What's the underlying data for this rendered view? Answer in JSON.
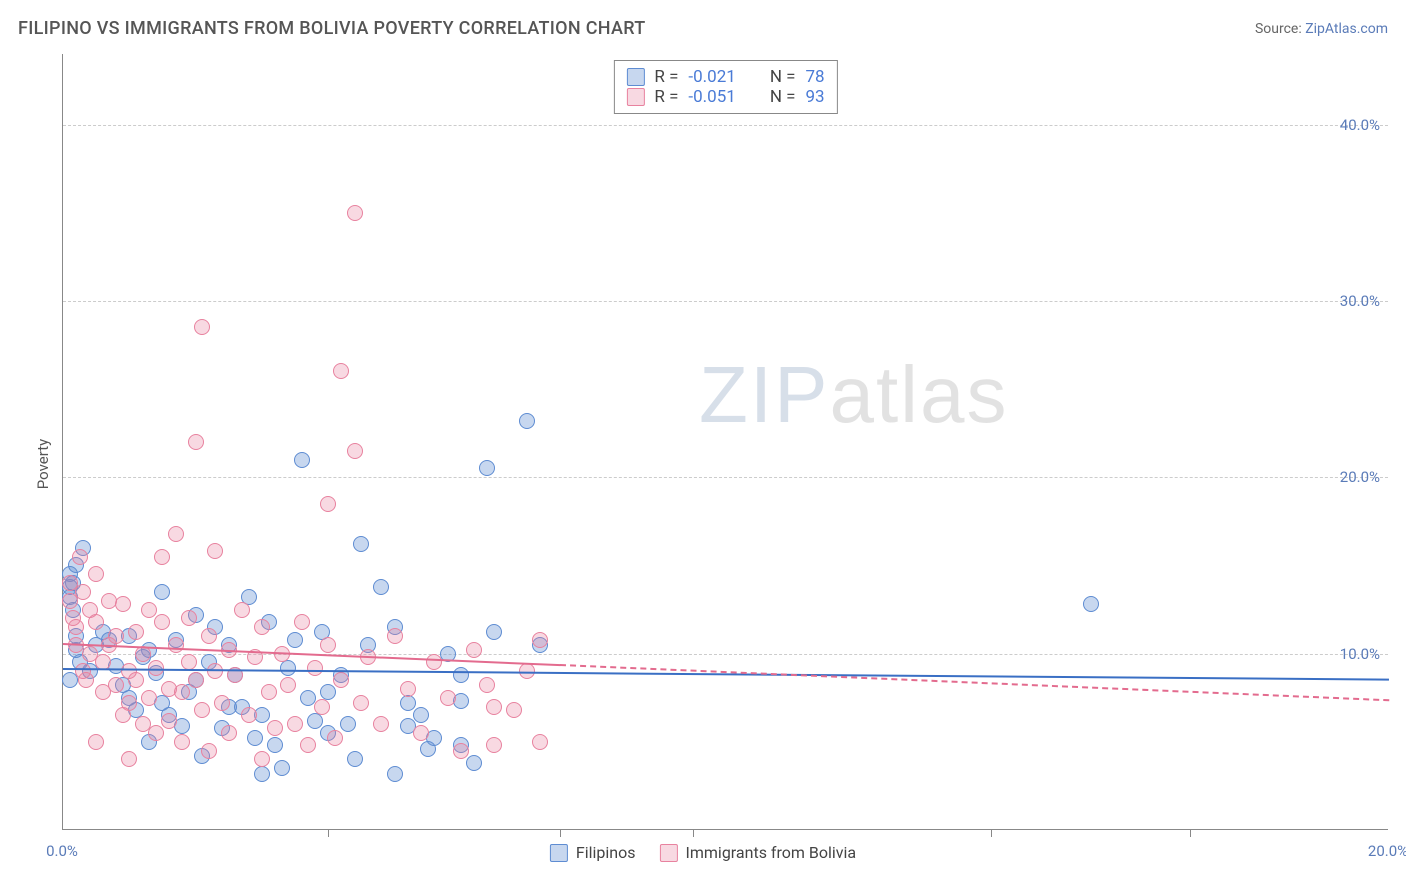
{
  "title": "FILIPINO VS IMMIGRANTS FROM BOLIVIA POVERTY CORRELATION CHART",
  "source_label": "Source:",
  "source_link_text": "ZipAtlas.com",
  "yaxis_label": "Poverty",
  "chart": {
    "type": "scatter",
    "xlim": [
      0,
      20
    ],
    "ylim": [
      0,
      44
    ],
    "xticks": [
      {
        "v": 0,
        "label": "0.0%"
      },
      {
        "v": 20,
        "label": "20.0%"
      }
    ],
    "xtick_marks": [
      4,
      7.5,
      9.5,
      14,
      17
    ],
    "yticks": [
      {
        "v": 10,
        "label": "10.0%"
      },
      {
        "v": 20,
        "label": "20.0%"
      },
      {
        "v": 30,
        "label": "30.0%"
      },
      {
        "v": 40,
        "label": "40.0%"
      }
    ],
    "grid_color": "#cccccc",
    "background_color": "#ffffff",
    "watermark_text_1": "ZIP",
    "watermark_text_2": "atlas",
    "series": [
      {
        "name": "Filipinos",
        "color_fill": "rgba(94,140,210,0.35)",
        "color_stroke": "#5e8cd2",
        "marker_radius": 8,
        "R": "-0.021",
        "N": "78",
        "trend": {
          "x0": 0,
          "y0": 9.2,
          "x1": 20,
          "y1": 8.6,
          "color": "#3a6fc4",
          "solid_until_x": 20
        },
        "points": [
          [
            0.1,
            14.5
          ],
          [
            0.1,
            13.8
          ],
          [
            0.1,
            13.2
          ],
          [
            0.15,
            12.5
          ],
          [
            0.15,
            14
          ],
          [
            0.2,
            11
          ],
          [
            0.2,
            10.2
          ],
          [
            0.25,
            9.5
          ],
          [
            0.2,
            15
          ],
          [
            0.3,
            16
          ],
          [
            0.1,
            8.5
          ],
          [
            0.4,
            9
          ],
          [
            0.5,
            10.5
          ],
          [
            0.6,
            11.2
          ],
          [
            0.7,
            10.8
          ],
          [
            0.8,
            9.3
          ],
          [
            0.9,
            8.2
          ],
          [
            1.0,
            7.5
          ],
          [
            1.0,
            11
          ],
          [
            1.1,
            6.8
          ],
          [
            1.2,
            9.8
          ],
          [
            1.3,
            10.2
          ],
          [
            1.4,
            8.9
          ],
          [
            1.5,
            13.5
          ],
          [
            1.5,
            7.2
          ],
          [
            1.6,
            6.5
          ],
          [
            1.7,
            10.8
          ],
          [
            1.8,
            5.9
          ],
          [
            1.9,
            7.8
          ],
          [
            2.0,
            8.5
          ],
          [
            2.0,
            12.2
          ],
          [
            2.1,
            4.2
          ],
          [
            2.2,
            9.5
          ],
          [
            2.3,
            11.5
          ],
          [
            2.4,
            5.8
          ],
          [
            2.5,
            10.5
          ],
          [
            2.6,
            8.8
          ],
          [
            2.7,
            7.0
          ],
          [
            2.8,
            13.2
          ],
          [
            2.9,
            5.2
          ],
          [
            3.0,
            6.5
          ],
          [
            3.1,
            11.8
          ],
          [
            3.2,
            4.8
          ],
          [
            3.3,
            3.5
          ],
          [
            3.4,
            9.2
          ],
          [
            3.5,
            10.8
          ],
          [
            3.6,
            21.0
          ],
          [
            3.7,
            7.5
          ],
          [
            3.8,
            6.2
          ],
          [
            3.9,
            11.2
          ],
          [
            4.0,
            5.5
          ],
          [
            4.2,
            8.8
          ],
          [
            4.4,
            4.0
          ],
          [
            4.5,
            16.2
          ],
          [
            4.6,
            10.5
          ],
          [
            4.8,
            13.8
          ],
          [
            5.0,
            3.2
          ],
          [
            5.0,
            11.5
          ],
          [
            5.2,
            5.9
          ],
          [
            5.2,
            7.2
          ],
          [
            5.4,
            6.5
          ],
          [
            5.6,
            5.2
          ],
          [
            5.8,
            10.0
          ],
          [
            6.0,
            7.3
          ],
          [
            6.0,
            4.8
          ],
          [
            6.2,
            3.8
          ],
          [
            6.4,
            20.5
          ],
          [
            6.5,
            11.2
          ],
          [
            7.0,
            23.2
          ],
          [
            7.2,
            10.5
          ],
          [
            6.0,
            8.8
          ],
          [
            5.5,
            4.6
          ],
          [
            4.0,
            7.8
          ],
          [
            4.3,
            6.0
          ],
          [
            3.0,
            3.2
          ],
          [
            15.5,
            12.8
          ],
          [
            2.5,
            7.0
          ],
          [
            1.3,
            5.0
          ]
        ]
      },
      {
        "name": "Immigrants from Bolivia",
        "color_fill": "rgba(232,130,160,0.30)",
        "color_stroke": "#e8829f",
        "marker_radius": 8,
        "R": "-0.051",
        "N": "93",
        "trend": {
          "x0": 0,
          "y0": 10.6,
          "x1": 20,
          "y1": 7.4,
          "color": "#e36b8e",
          "solid_until_x": 7.5
        },
        "points": [
          [
            0.1,
            14.0
          ],
          [
            0.1,
            13.0
          ],
          [
            0.15,
            12.0
          ],
          [
            0.2,
            11.5
          ],
          [
            0.2,
            10.5
          ],
          [
            0.25,
            15.5
          ],
          [
            0.3,
            9.0
          ],
          [
            0.3,
            13.5
          ],
          [
            0.35,
            8.5
          ],
          [
            0.4,
            12.5
          ],
          [
            0.4,
            10.0
          ],
          [
            0.5,
            11.8
          ],
          [
            0.5,
            14.5
          ],
          [
            0.6,
            9.5
          ],
          [
            0.6,
            7.8
          ],
          [
            0.7,
            13.0
          ],
          [
            0.7,
            10.5
          ],
          [
            0.8,
            8.2
          ],
          [
            0.8,
            11.0
          ],
          [
            0.9,
            6.5
          ],
          [
            0.9,
            12.8
          ],
          [
            1.0,
            9.0
          ],
          [
            1.0,
            7.2
          ],
          [
            1.1,
            11.2
          ],
          [
            1.1,
            8.5
          ],
          [
            1.2,
            6.0
          ],
          [
            1.2,
            10.0
          ],
          [
            1.3,
            12.5
          ],
          [
            1.3,
            7.5
          ],
          [
            1.4,
            9.2
          ],
          [
            1.4,
            5.5
          ],
          [
            1.5,
            15.5
          ],
          [
            1.5,
            11.8
          ],
          [
            1.6,
            8.0
          ],
          [
            1.6,
            6.2
          ],
          [
            1.7,
            10.5
          ],
          [
            1.7,
            16.8
          ],
          [
            1.8,
            7.8
          ],
          [
            1.8,
            5.0
          ],
          [
            1.9,
            9.5
          ],
          [
            1.9,
            12.0
          ],
          [
            2.0,
            22.0
          ],
          [
            2.0,
            8.5
          ],
          [
            2.1,
            28.5
          ],
          [
            2.1,
            6.8
          ],
          [
            2.2,
            11.0
          ],
          [
            2.2,
            4.5
          ],
          [
            2.3,
            9.0
          ],
          [
            2.3,
            15.8
          ],
          [
            2.4,
            7.2
          ],
          [
            2.5,
            10.2
          ],
          [
            2.5,
            5.5
          ],
          [
            2.6,
            8.8
          ],
          [
            2.7,
            12.5
          ],
          [
            2.8,
            6.5
          ],
          [
            2.9,
            9.8
          ],
          [
            3.0,
            4.0
          ],
          [
            3.0,
            11.5
          ],
          [
            3.1,
            7.8
          ],
          [
            3.2,
            5.8
          ],
          [
            3.3,
            10.0
          ],
          [
            3.4,
            8.2
          ],
          [
            3.5,
            6.0
          ],
          [
            3.6,
            11.8
          ],
          [
            3.7,
            4.8
          ],
          [
            3.8,
            9.2
          ],
          [
            3.9,
            7.0
          ],
          [
            4.0,
            18.5
          ],
          [
            4.0,
            10.5
          ],
          [
            4.1,
            5.2
          ],
          [
            4.2,
            26.0
          ],
          [
            4.2,
            8.5
          ],
          [
            4.4,
            35.0
          ],
          [
            4.4,
            21.5
          ],
          [
            4.5,
            7.2
          ],
          [
            4.6,
            9.8
          ],
          [
            4.8,
            6.0
          ],
          [
            5.0,
            11.0
          ],
          [
            5.2,
            8.0
          ],
          [
            5.4,
            5.5
          ],
          [
            5.6,
            9.5
          ],
          [
            5.8,
            7.5
          ],
          [
            6.0,
            4.5
          ],
          [
            6.2,
            10.2
          ],
          [
            6.4,
            8.2
          ],
          [
            6.5,
            4.8
          ],
          [
            6.8,
            6.8
          ],
          [
            7.0,
            9.0
          ],
          [
            7.2,
            5.0
          ],
          [
            7.2,
            10.8
          ],
          [
            6.5,
            7.0
          ],
          [
            1.0,
            4.0
          ],
          [
            0.5,
            5.0
          ]
        ]
      }
    ]
  },
  "legend_top": {
    "r_label": "R =",
    "n_label": "N ="
  },
  "legend_bottom": [
    {
      "label": "Filipinos"
    },
    {
      "label": "Immigrants from Bolivia"
    }
  ]
}
